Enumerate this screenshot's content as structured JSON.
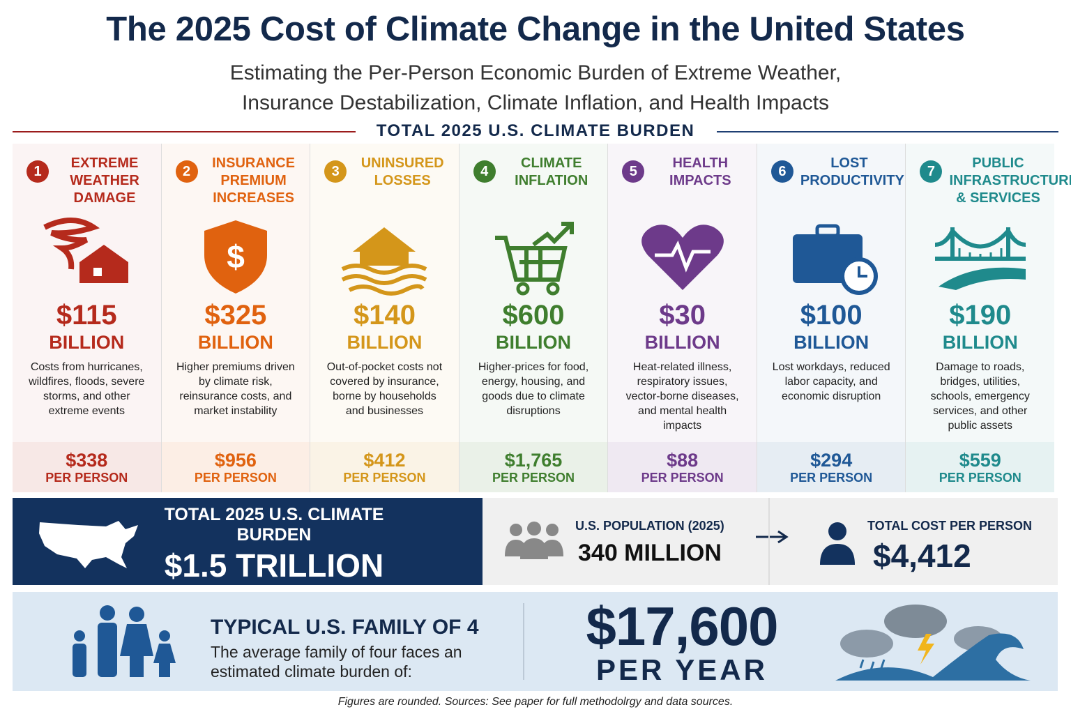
{
  "header": {
    "title": "The 2025 Cost of Climate Change in the United States",
    "subtitle": [
      "Estimating the Per-Person Economic Burden of Extreme Weather,",
      "Insurance Destabilization, Climate Inflation, and Health Impacts"
    ],
    "section_label": "TOTAL 2025 U.S. CLIMATE BURDEN"
  },
  "categories": [
    {
      "number": "1",
      "title": "EXTREME WEATHER DAMAGE",
      "amount": "$115",
      "unit": "BILLION",
      "description": "Costs from hurricanes, wildfires, floods, severe storms, and other extreme events",
      "per_person": "$338",
      "per_person_label": "PER PERSON",
      "color": "#b52a1c"
    },
    {
      "number": "2",
      "title": "INSURANCE PREMIUM INCREASES",
      "amount": "$325",
      "unit": "BILLION",
      "description": "Higher premiums driven by climate risk, reinsurance costs, and market instability",
      "per_person": "$956",
      "per_person_label": "PER PERSON",
      "color": "#e0620f"
    },
    {
      "number": "3",
      "title": "UNINSURED LOSSES",
      "amount": "$140",
      "unit": "BILLION",
      "description": "Out-of-pocket costs not covered by insurance, borne by households and businesses",
      "per_person": "$412",
      "per_person_label": "PER PERSON",
      "color": "#d4961a"
    },
    {
      "number": "4",
      "title": "CLIMATE INFLATION",
      "amount": "$600",
      "unit": "BILLION",
      "description": "Higher-prices for food, energy, housing, and goods due to climate disruptions",
      "per_person": "$1,765",
      "per_person_label": "PER PERSON",
      "color": "#3f7e2e"
    },
    {
      "number": "5",
      "title": "HEALTH IMPACTS",
      "amount": "$30",
      "unit": "BILLION",
      "description": "Heat-related illness, respiratory issues, vector-borne diseases, and mental health impacts",
      "per_person": "$88",
      "per_person_label": "PER PERSON",
      "color": "#6d3a8a"
    },
    {
      "number": "6",
      "title": "LOST PRODUCTIVITY",
      "amount": "$100",
      "unit": "BILLION",
      "description": "Lost workdays, reduced labor capacity, and economic disruption",
      "per_person": "$294",
      "per_person_label": "PER PERSON",
      "color": "#1f5896"
    },
    {
      "number": "7",
      "title": "PUBLIC INFRASTRUCTURE & SERVICES",
      "amount": "$190",
      "unit": "BILLION",
      "description": "Damage to roads, bridges, utilities, schools, emergency services, and other public assets",
      "per_person": "$559",
      "per_person_label": "PER PERSON",
      "color": "#1f8a8c"
    }
  ],
  "total": {
    "label": "TOTAL 2025 U.S. CLIMATE BURDEN",
    "value": "$1.5 TRILLION"
  },
  "population": {
    "label": "U.S. POPULATION (2025)",
    "value": "340 MILLION"
  },
  "per_person_total": {
    "label": "TOTAL COST PER PERSON",
    "value": "$4,412"
  },
  "family": {
    "title": "TYPICAL U.S. FAMILY OF 4",
    "text": "The average family of four faces an estimated climate burden of:",
    "amount": "$17,600",
    "period": "PER YEAR"
  },
  "footnote": "Figures are rounded. Sources: See paper for full methodolrgy and data sources."
}
